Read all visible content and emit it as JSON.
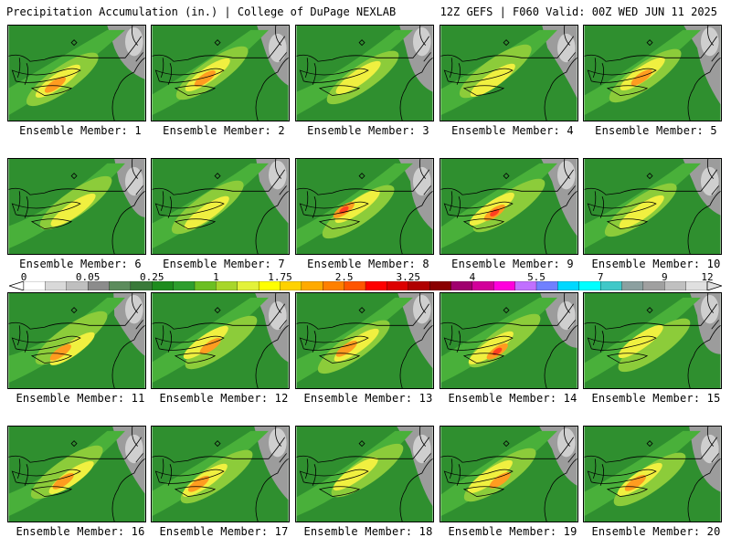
{
  "header": {
    "title_left": "Precipitation Accumulation (in.) | College of DuPage NEXLAB",
    "title_right": "12Z GEFS | F060 Valid: 00Z WED JUN 11 2025"
  },
  "panels": [
    {
      "label": "Ensemble Member: 1",
      "max_color": "orange"
    },
    {
      "label": "Ensemble Member: 2",
      "max_color": "orange"
    },
    {
      "label": "Ensemble Member: 3",
      "max_color": "yellow"
    },
    {
      "label": "Ensemble Member: 4",
      "max_color": "yellow"
    },
    {
      "label": "Ensemble Member: 5",
      "max_color": "orange"
    },
    {
      "label": "Ensemble Member: 6",
      "max_color": "yellow"
    },
    {
      "label": "Ensemble Member: 7",
      "max_color": "yellow"
    },
    {
      "label": "Ensemble Member: 8",
      "max_color": "red"
    },
    {
      "label": "Ensemble Member: 9",
      "max_color": "red"
    },
    {
      "label": "Ensemble Member: 10",
      "max_color": "yellow"
    },
    {
      "label": "Ensemble Member: 11",
      "max_color": "orange"
    },
    {
      "label": "Ensemble Member: 12",
      "max_color": "orange"
    },
    {
      "label": "Ensemble Member: 13",
      "max_color": "orange"
    },
    {
      "label": "Ensemble Member: 14",
      "max_color": "red"
    },
    {
      "label": "Ensemble Member: 15",
      "max_color": "yellow"
    },
    {
      "label": "Ensemble Member: 16",
      "max_color": "orange"
    },
    {
      "label": "Ensemble Member: 17",
      "max_color": "orange"
    },
    {
      "label": "Ensemble Member: 18",
      "max_color": "yellow"
    },
    {
      "label": "Ensemble Member: 19",
      "max_color": "orange"
    },
    {
      "label": "Ensemble Member: 20",
      "max_color": "orange"
    }
  ],
  "colorbar": {
    "tick_labels": [
      "0",
      "0.05",
      "0.25",
      "1",
      "1.75",
      "2.5",
      "3.25",
      "4",
      "5.5",
      "7",
      "9",
      "12"
    ],
    "colors": [
      "#ffffff",
      "#d9d9d9",
      "#bfbfbf",
      "#8c8c8c",
      "#5c8c5c",
      "#3a7a3a",
      "#1e8c1e",
      "#2e9e2e",
      "#6cbf22",
      "#a8d62a",
      "#e3f23a",
      "#ffff00",
      "#ffd200",
      "#ffaa00",
      "#ff8000",
      "#ff5500",
      "#ff0000",
      "#dd0000",
      "#b00000",
      "#8a0000",
      "#a0006e",
      "#d2009a",
      "#ff00dc",
      "#c070ff",
      "#7080ff",
      "#00d8ff",
      "#00ffff",
      "#40c8c8",
      "#8ca0a0",
      "#a0a0a0",
      "#c0c0c0",
      "#e0e0e0"
    ]
  },
  "map_colors": {
    "dark_green": "#2f8f2f",
    "green": "#49b03a",
    "light_green": "#8ccc3a",
    "yellow": "#f0f040",
    "orange": "#ff9c20",
    "red": "#ff4020",
    "gray": "#9c9c9c",
    "light_gray": "#cfcfcf",
    "border": "#000000"
  }
}
